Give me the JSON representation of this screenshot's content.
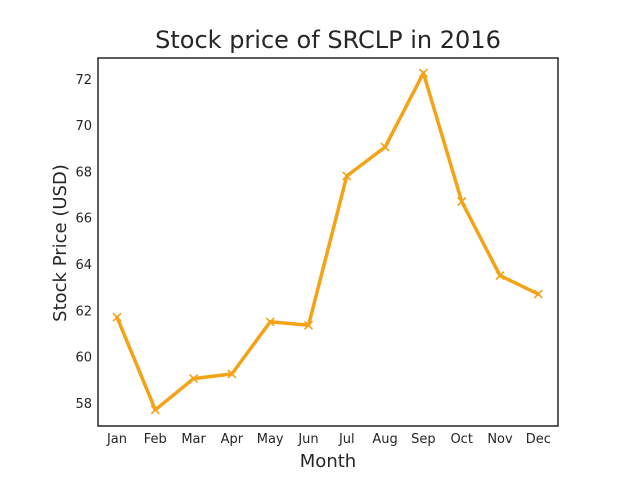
{
  "chart_data": {
    "type": "line",
    "title": "Stock price of SRCLP in 2016",
    "xlabel": "Month",
    "ylabel": "Stock Price (USD)",
    "categories": [
      "Jan",
      "Feb",
      "Mar",
      "Apr",
      "May",
      "Jun",
      "Jul",
      "Aug",
      "Sep",
      "Oct",
      "Nov",
      "Dec"
    ],
    "yticks": [
      58,
      60,
      62,
      64,
      66,
      68,
      70,
      72
    ],
    "ylim": [
      57.0,
      72.9
    ],
    "grid": false,
    "series": [
      {
        "values": [
          61.7,
          57.7,
          59.05,
          59.25,
          61.5,
          61.35,
          67.8,
          69.05,
          72.25,
          66.7,
          63.5,
          62.7
        ],
        "color": "#f5a316",
        "marker": "x"
      }
    ]
  }
}
